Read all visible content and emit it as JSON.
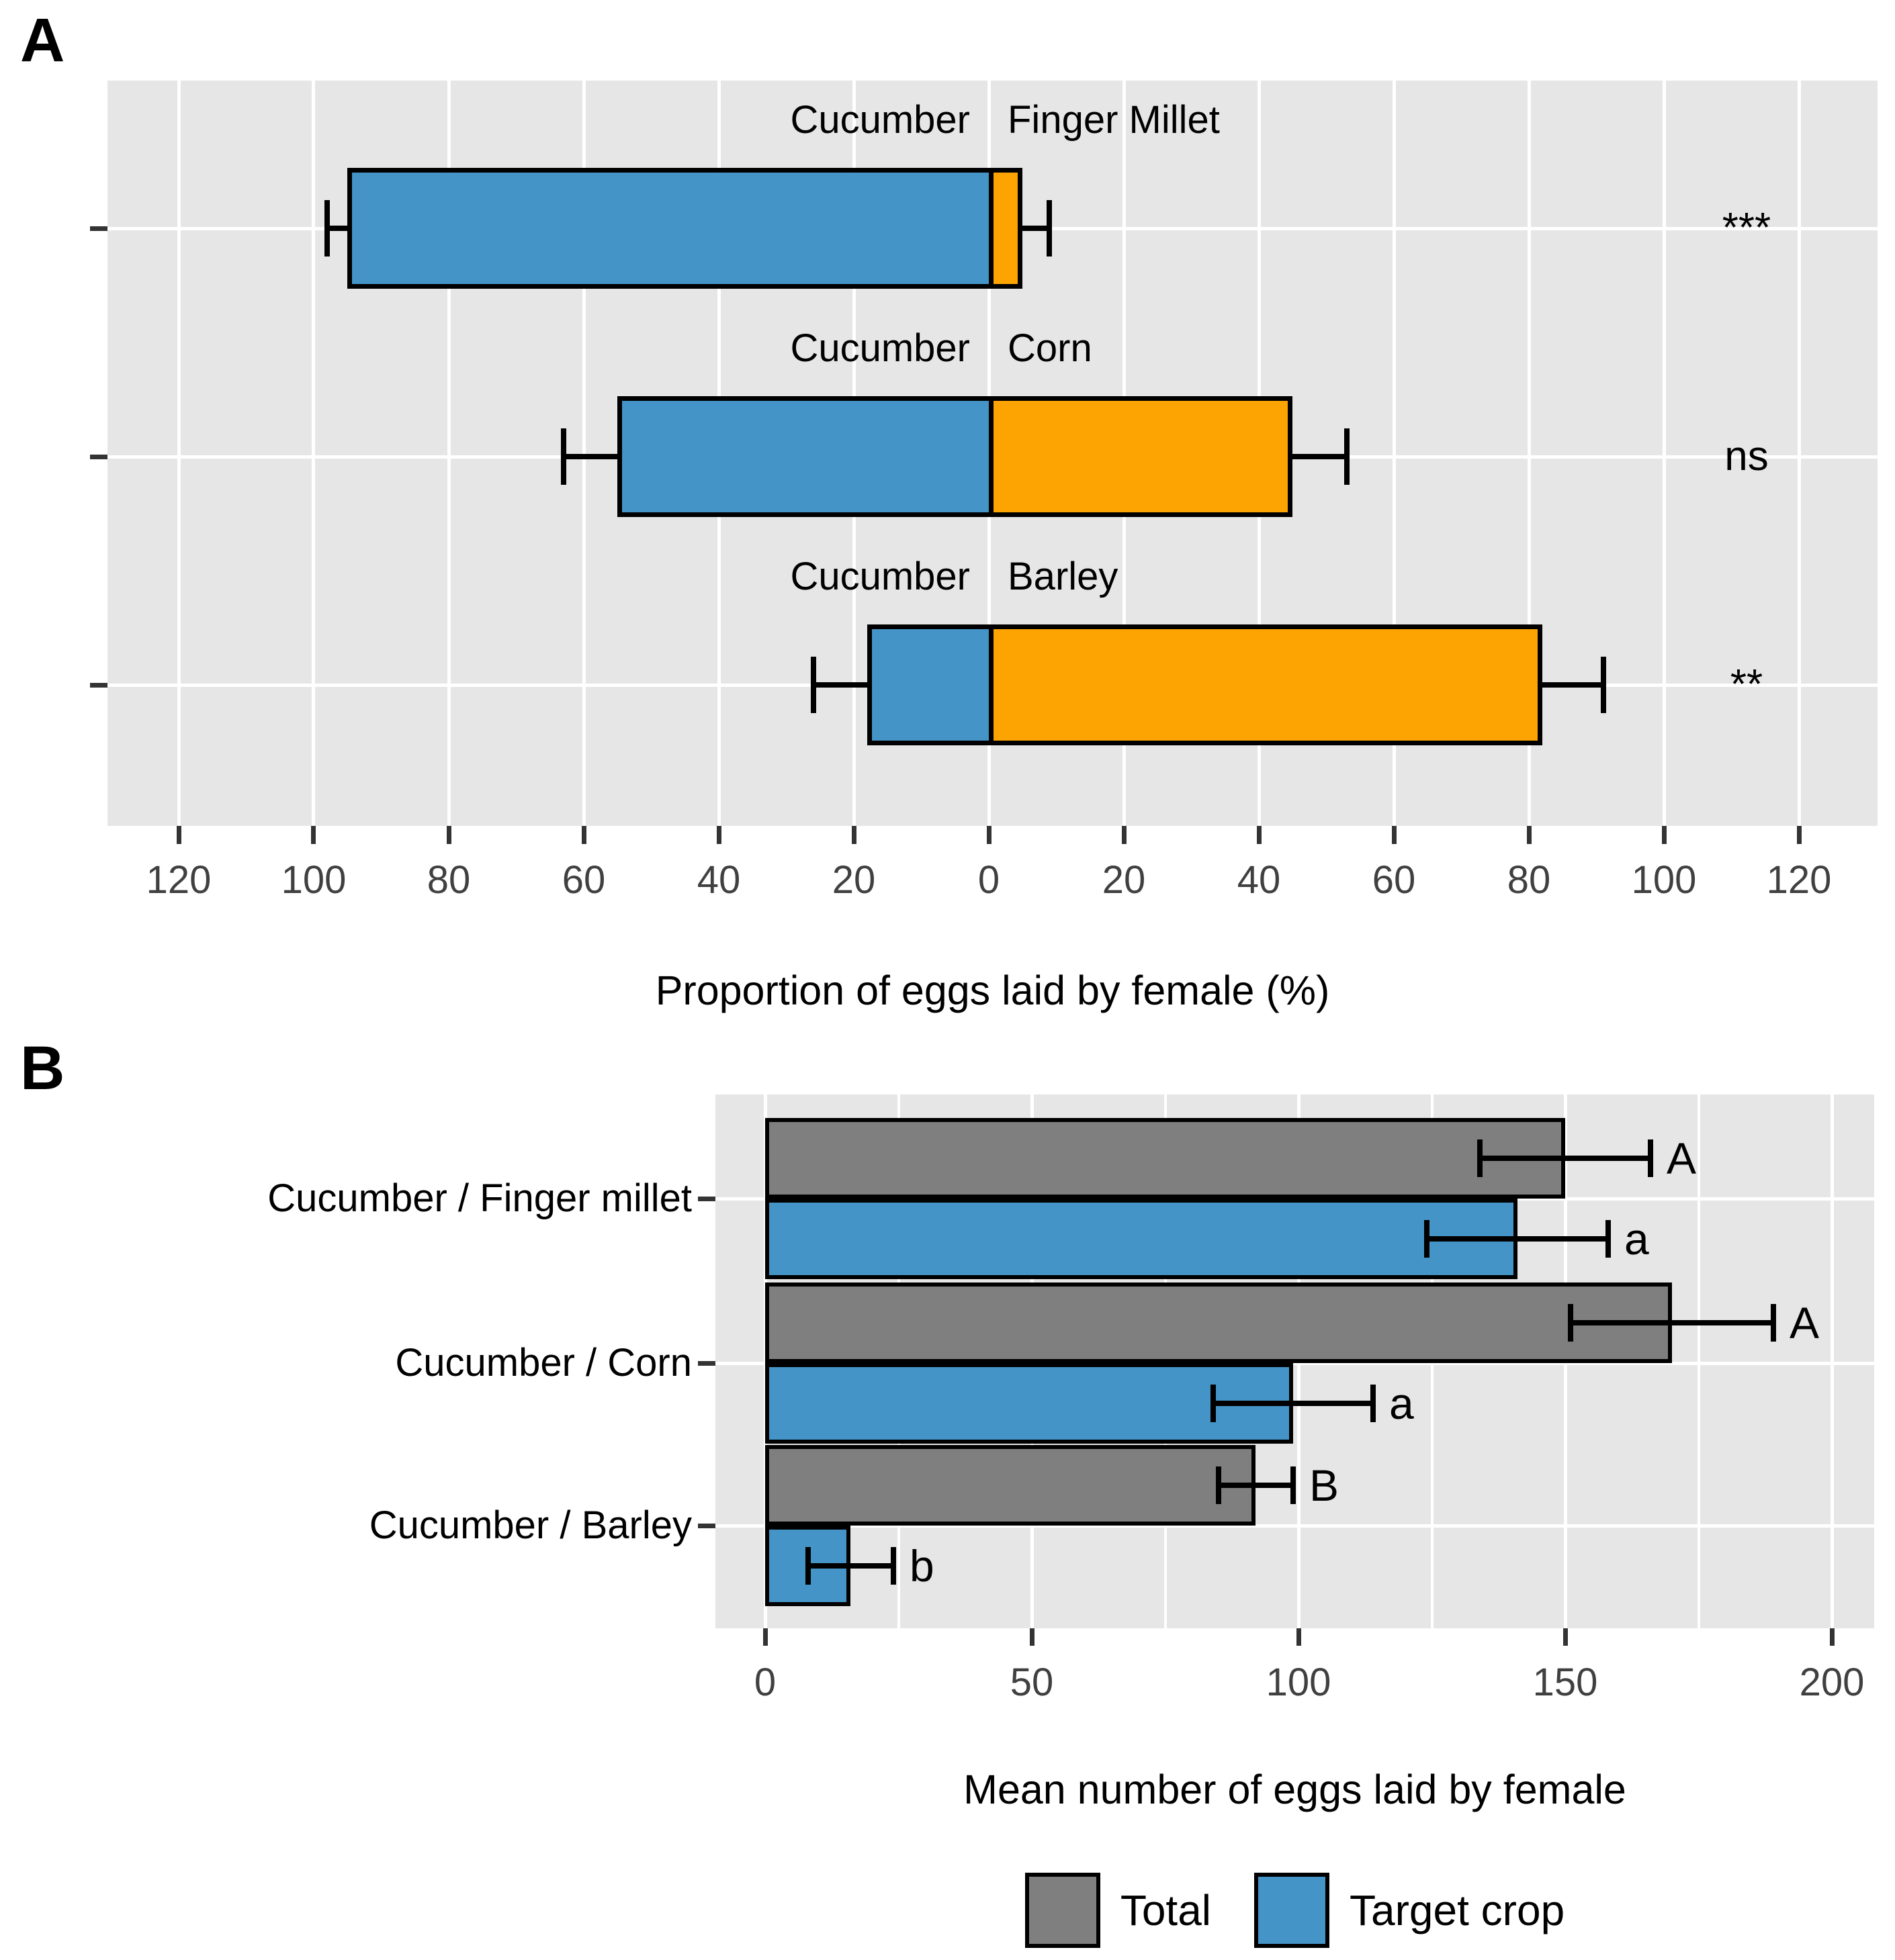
{
  "chart_data": [
    {
      "id": "panel-a",
      "type": "bar",
      "variant": "horizontal-diverging-stacked",
      "panel_label": "A",
      "xlabel": "Proportion of eggs laid by female (%)",
      "x_domain": [
        -130.5,
        131.5
      ],
      "grid": "on",
      "ticks": [
        {
          "v": -120,
          "label": "120"
        },
        {
          "v": -100,
          "label": "100"
        },
        {
          "v": -80,
          "label": "80"
        },
        {
          "v": -60,
          "label": "60"
        },
        {
          "v": -40,
          "label": "40"
        },
        {
          "v": -20,
          "label": "20"
        },
        {
          "v": 0,
          "label": "0"
        },
        {
          "v": 20,
          "label": "20"
        },
        {
          "v": 40,
          "label": "40"
        },
        {
          "v": 60,
          "label": "60"
        },
        {
          "v": 80,
          "label": "80"
        },
        {
          "v": 100,
          "label": "100"
        },
        {
          "v": 120,
          "label": "120"
        }
      ],
      "rows": [
        {
          "left_label": "Cucumber",
          "right_label": "Finger Millet",
          "cucumber_pct": 95,
          "cucumber_err": 3,
          "companion_pct": 5,
          "companion_err": 4,
          "significance": "***"
        },
        {
          "left_label": "Cucumber",
          "right_label": "Corn",
          "cucumber_pct": 55,
          "cucumber_err": 8,
          "companion_pct": 45,
          "companion_err": 8,
          "significance": "ns"
        },
        {
          "left_label": "Cucumber",
          "right_label": "Barley",
          "cucumber_pct": 18,
          "cucumber_err": 8,
          "companion_pct": 82,
          "companion_err": 9,
          "significance": "**"
        }
      ],
      "colors": {
        "cucumber_bar": "#4494C7",
        "companion_bar": "#FEA402"
      }
    },
    {
      "id": "panel-b",
      "type": "bar",
      "variant": "horizontal-grouped",
      "panel_label": "B",
      "xlabel": "Mean number of eggs laid by female",
      "x_domain": [
        -9,
        208
      ],
      "grid": "on",
      "ticks": [
        {
          "v": 0,
          "label": "0"
        },
        {
          "v": 50,
          "label": "50"
        },
        {
          "v": 100,
          "label": "100"
        },
        {
          "v": 150,
          "label": "150"
        },
        {
          "v": 200,
          "label": "200"
        }
      ],
      "minor_gridlines": [
        25,
        75,
        125,
        175
      ],
      "groups": [
        {
          "label": "Cucumber / Finger millet",
          "total": {
            "value": 150,
            "err": 16,
            "letter": "A"
          },
          "target": {
            "value": 141,
            "err": 17,
            "letter": "a"
          }
        },
        {
          "label": "Cucumber / Corn",
          "total": {
            "value": 170,
            "err": 19,
            "letter": "A"
          },
          "target": {
            "value": 99,
            "err": 15,
            "letter": "a"
          }
        },
        {
          "label": "Cucumber / Barley",
          "total": {
            "value": 92,
            "err": 7,
            "letter": "B"
          },
          "target": {
            "value": 16,
            "err": 8,
            "letter": "b"
          }
        }
      ],
      "colors": {
        "total_bar": "#7F7F7F",
        "target_bar": "#4494C7"
      }
    }
  ],
  "legend": {
    "items": [
      {
        "label": "Total",
        "color": "#7F7F7F"
      },
      {
        "label": "Target crop",
        "color": "#4494C7"
      }
    ]
  },
  "style": {
    "panel_bg": "#E6E6E6",
    "gridline": "#FFFFFF",
    "tick_label_color": "#404040",
    "tick_mark_color": "#333333",
    "bar_border": "#000000"
  }
}
